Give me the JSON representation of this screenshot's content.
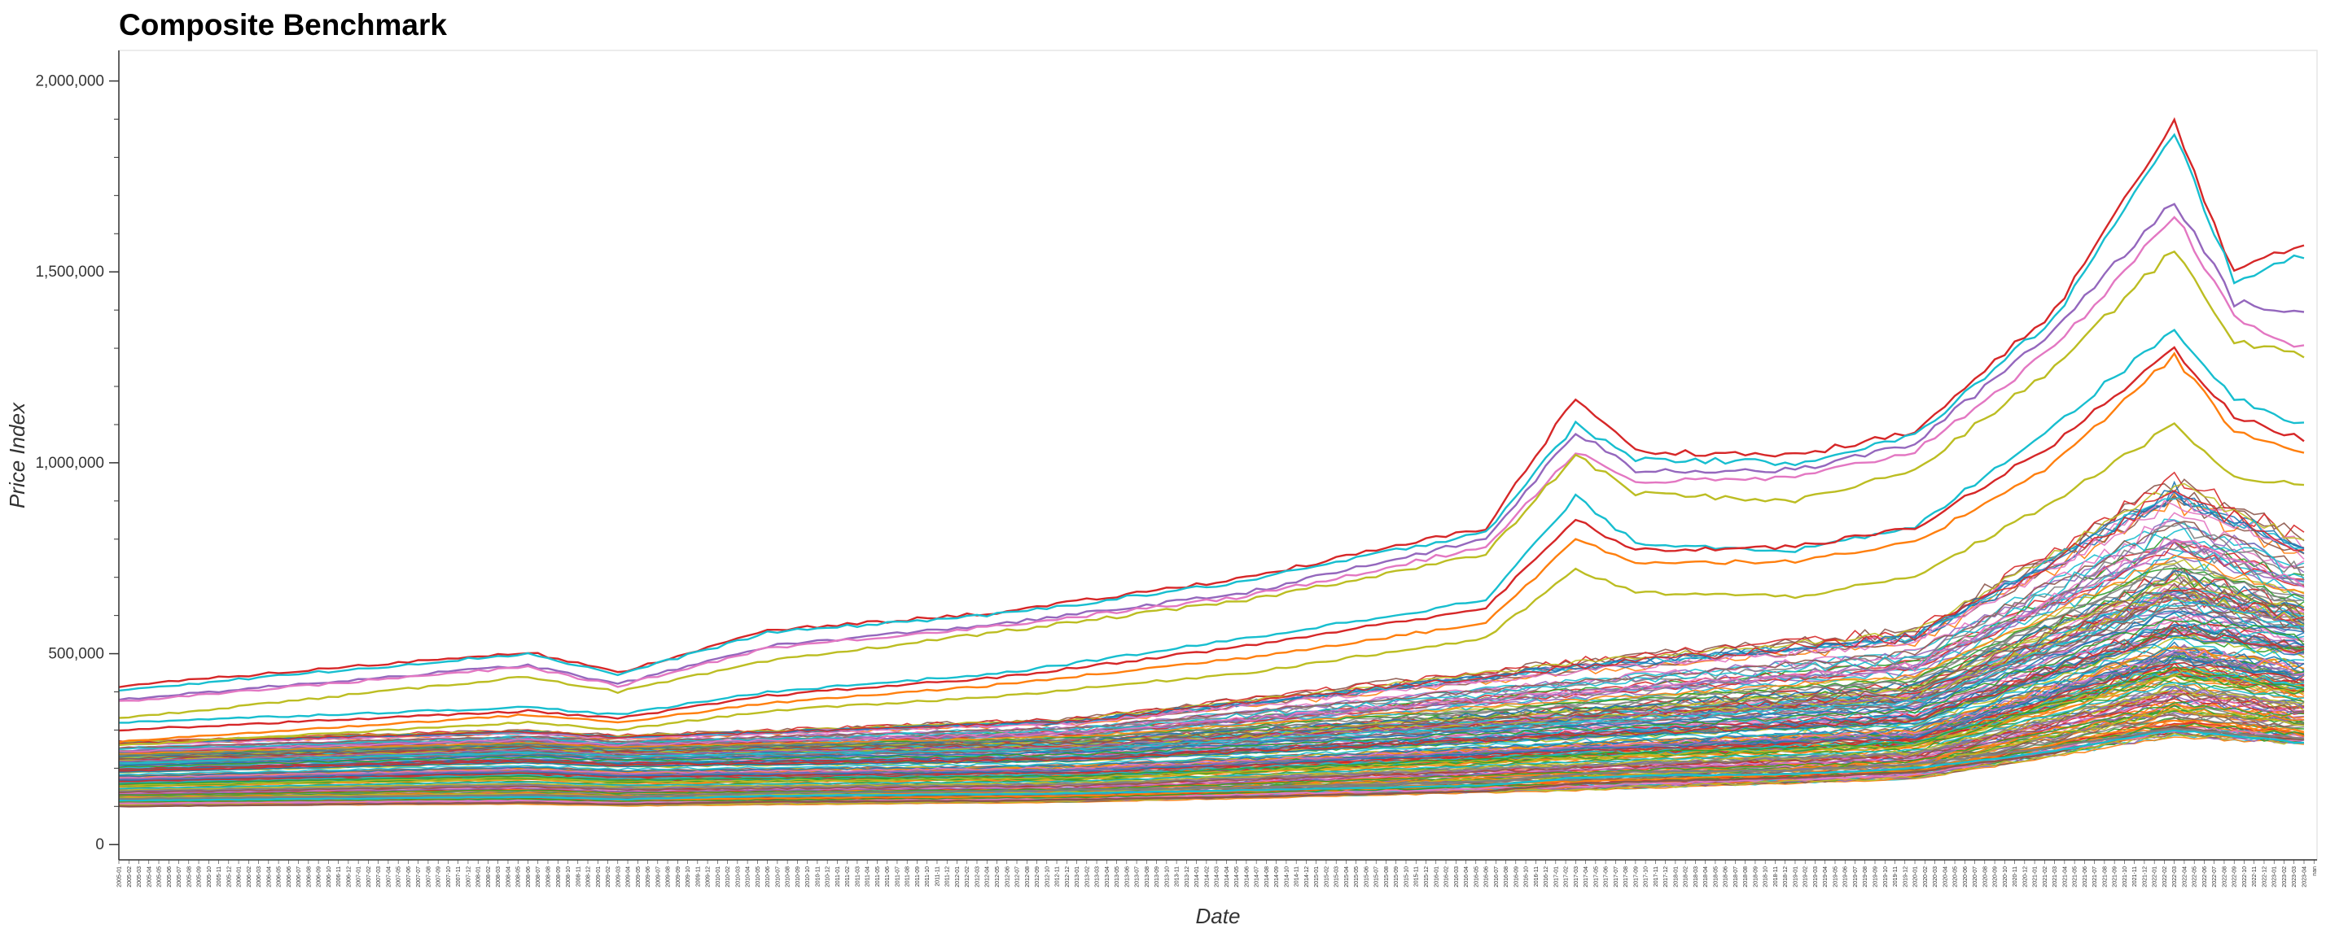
{
  "chart_data": {
    "type": "line",
    "title": "Composite Benchmark",
    "xlabel": "Date",
    "ylabel": "Price Index",
    "ylim": [
      -40000,
      2080000
    ],
    "yticks": [
      0,
      500000,
      1000000,
      1500000,
      2000000
    ],
    "ytick_labels": [
      "0",
      "500,000",
      "1,000,000",
      "1,500,000",
      "2,000,000"
    ],
    "x_start": "2005-01",
    "x_end": "2023-04",
    "x_trailing_label": "nan",
    "grid": false,
    "legend": "none",
    "series_count_approx": 200,
    "band_percentiles": [
      0,
      0.25,
      0.5,
      0.75,
      1
    ],
    "band_anchors": [
      {
        "x": "2005-01",
        "y": [
          100000,
          155000,
          190000,
          225000,
          270000
        ]
      },
      {
        "x": "2008-06",
        "y": [
          105000,
          175000,
          215000,
          255000,
          300000
        ]
      },
      {
        "x": "2009-03",
        "y": [
          100000,
          165000,
          205000,
          245000,
          285000
        ]
      },
      {
        "x": "2013-01",
        "y": [
          110000,
          175000,
          220000,
          265000,
          330000
        ]
      },
      {
        "x": "2017-03",
        "y": [
          140000,
          230000,
          280000,
          340000,
          480000
        ]
      },
      {
        "x": "2020-01",
        "y": [
          170000,
          260000,
          320000,
          400000,
          560000
        ]
      },
      {
        "x": "2022-03",
        "y": [
          280000,
          450000,
          550000,
          680000,
          950000
        ]
      },
      {
        "x": "2023-04",
        "y": [
          260000,
          400000,
          500000,
          600000,
          800000
        ]
      }
    ],
    "series_highlighted": [
      {
        "color": "#d62728",
        "points": [
          [
            "2005-01",
            415000
          ],
          [
            "2008-06",
            505000
          ],
          [
            "2009-03",
            450000
          ],
          [
            "2010-06",
            560000
          ],
          [
            "2012-06",
            610000
          ],
          [
            "2014-06",
            700000
          ],
          [
            "2016-06",
            830000
          ],
          [
            "2017-03",
            1170000
          ],
          [
            "2017-09",
            1030000
          ],
          [
            "2019-01",
            1020000
          ],
          [
            "2020-01",
            1080000
          ],
          [
            "2021-03",
            1400000
          ],
          [
            "2022-03",
            1890000
          ],
          [
            "2022-09",
            1500000
          ],
          [
            "2023-04",
            1570000
          ]
        ]
      },
      {
        "color": "#17becf",
        "points": [
          [
            "2005-01",
            405000
          ],
          [
            "2008-06",
            500000
          ],
          [
            "2009-03",
            445000
          ],
          [
            "2010-06",
            555000
          ],
          [
            "2012-06",
            605000
          ],
          [
            "2014-06",
            690000
          ],
          [
            "2016-06",
            820000
          ],
          [
            "2017-03",
            1100000
          ],
          [
            "2017-09",
            1010000
          ],
          [
            "2019-01",
            1000000
          ],
          [
            "2020-01",
            1070000
          ],
          [
            "2021-03",
            1380000
          ],
          [
            "2022-03",
            1860000
          ],
          [
            "2022-09",
            1480000
          ],
          [
            "2023-04",
            1540000
          ]
        ]
      },
      {
        "color": "#9467bd",
        "points": [
          [
            "2005-01",
            380000
          ],
          [
            "2008-06",
            470000
          ],
          [
            "2009-03",
            420000
          ],
          [
            "2010-06",
            520000
          ],
          [
            "2012-06",
            580000
          ],
          [
            "2014-06",
            660000
          ],
          [
            "2016-06",
            800000
          ],
          [
            "2017-03",
            1080000
          ],
          [
            "2017-09",
            980000
          ],
          [
            "2019-01",
            980000
          ],
          [
            "2020-01",
            1050000
          ],
          [
            "2021-03",
            1350000
          ],
          [
            "2022-03",
            1690000
          ],
          [
            "2022-09",
            1420000
          ],
          [
            "2023-04",
            1390000
          ]
        ]
      },
      {
        "color": "#e377c2",
        "points": [
          [
            "2005-01",
            375000
          ],
          [
            "2008-06",
            465000
          ],
          [
            "2009-03",
            415000
          ],
          [
            "2010-06",
            515000
          ],
          [
            "2012-06",
            575000
          ],
          [
            "2014-06",
            650000
          ],
          [
            "2016-06",
            780000
          ],
          [
            "2017-03",
            1030000
          ],
          [
            "2017-09",
            950000
          ],
          [
            "2019-01",
            960000
          ],
          [
            "2020-01",
            1030000
          ],
          [
            "2021-03",
            1300000
          ],
          [
            "2022-03",
            1650000
          ],
          [
            "2022-09",
            1380000
          ],
          [
            "2023-04",
            1300000
          ]
        ]
      },
      {
        "color": "#bcbd22",
        "points": [
          [
            "2005-01",
            330000
          ],
          [
            "2008-06",
            440000
          ],
          [
            "2009-03",
            400000
          ],
          [
            "2010-06",
            480000
          ],
          [
            "2012-06",
            560000
          ],
          [
            "2014-06",
            640000
          ],
          [
            "2016-06",
            760000
          ],
          [
            "2017-03",
            1020000
          ],
          [
            "2017-09",
            920000
          ],
          [
            "2019-01",
            900000
          ],
          [
            "2020-01",
            980000
          ],
          [
            "2021-03",
            1250000
          ],
          [
            "2022-03",
            1560000
          ],
          [
            "2022-09",
            1320000
          ],
          [
            "2023-04",
            1280000
          ]
        ]
      },
      {
        "color": "#17becf",
        "points": [
          [
            "2005-01",
            320000
          ],
          [
            "2008-06",
            360000
          ],
          [
            "2009-03",
            340000
          ],
          [
            "2010-06",
            400000
          ],
          [
            "2012-06",
            450000
          ],
          [
            "2014-06",
            540000
          ],
          [
            "2016-06",
            640000
          ],
          [
            "2017-03",
            910000
          ],
          [
            "2017-09",
            790000
          ],
          [
            "2019-01",
            770000
          ],
          [
            "2020-01",
            830000
          ],
          [
            "2021-03",
            1100000
          ],
          [
            "2022-03",
            1350000
          ],
          [
            "2022-09",
            1170000
          ],
          [
            "2023-04",
            1100000
          ]
        ]
      },
      {
        "color": "#d62728",
        "points": [
          [
            "2005-01",
            300000
          ],
          [
            "2008-06",
            350000
          ],
          [
            "2009-03",
            330000
          ],
          [
            "2010-06",
            390000
          ],
          [
            "2012-06",
            440000
          ],
          [
            "2014-06",
            520000
          ],
          [
            "2016-06",
            620000
          ],
          [
            "2017-03",
            850000
          ],
          [
            "2017-09",
            770000
          ],
          [
            "2019-01",
            780000
          ],
          [
            "2020-01",
            830000
          ],
          [
            "2021-03",
            1050000
          ],
          [
            "2022-03",
            1300000
          ],
          [
            "2022-09",
            1120000
          ],
          [
            "2023-04",
            1060000
          ]
        ]
      },
      {
        "color": "#ff7f0e",
        "points": [
          [
            "2005-01",
            270000
          ],
          [
            "2008-06",
            340000
          ],
          [
            "2009-03",
            320000
          ],
          [
            "2010-06",
            370000
          ],
          [
            "2012-06",
            420000
          ],
          [
            "2014-06",
            490000
          ],
          [
            "2016-06",
            580000
          ],
          [
            "2017-03",
            800000
          ],
          [
            "2017-09",
            740000
          ],
          [
            "2019-01",
            740000
          ],
          [
            "2020-01",
            790000
          ],
          [
            "2021-03",
            1000000
          ],
          [
            "2022-03",
            1280000
          ],
          [
            "2022-09",
            1080000
          ],
          [
            "2023-04",
            1030000
          ]
        ]
      },
      {
        "color": "#bcbd22",
        "points": [
          [
            "2005-01",
            260000
          ],
          [
            "2008-06",
            320000
          ],
          [
            "2009-03",
            300000
          ],
          [
            "2010-06",
            350000
          ],
          [
            "2012-06",
            390000
          ],
          [
            "2014-06",
            450000
          ],
          [
            "2016-06",
            540000
          ],
          [
            "2017-03",
            720000
          ],
          [
            "2017-09",
            660000
          ],
          [
            "2019-01",
            650000
          ],
          [
            "2020-01",
            700000
          ],
          [
            "2021-03",
            900000
          ],
          [
            "2022-03",
            1100000
          ],
          [
            "2022-09",
            960000
          ],
          [
            "2023-04",
            940000
          ]
        ]
      },
      {
        "color": "#8c564b",
        "points": [
          [
            "2005-01",
            100000
          ],
          [
            "2008-06",
            110000
          ],
          [
            "2009-03",
            105000
          ],
          [
            "2010-06",
            112000
          ],
          [
            "2012-06",
            115000
          ],
          [
            "2014-06",
            125000
          ],
          [
            "2016-06",
            140000
          ],
          [
            "2017-03",
            160000
          ],
          [
            "2017-09",
            165000
          ],
          [
            "2019-01",
            175000
          ],
          [
            "2020-01",
            190000
          ],
          [
            "2021-03",
            240000
          ],
          [
            "2022-03",
            310000
          ],
          [
            "2022-09",
            290000
          ],
          [
            "2023-04",
            275000
          ]
        ]
      },
      {
        "color": "#17becf",
        "points": [
          [
            "2005-01",
            115000
          ],
          [
            "2008-06",
            125000
          ],
          [
            "2009-03",
            118000
          ],
          [
            "2010-06",
            128000
          ],
          [
            "2012-06",
            132000
          ],
          [
            "2014-06",
            142000
          ],
          [
            "2016-06",
            155000
          ],
          [
            "2017-03",
            175000
          ],
          [
            "2017-09",
            180000
          ],
          [
            "2019-01",
            185000
          ],
          [
            "2020-01",
            200000
          ],
          [
            "2021-03",
            245000
          ],
          [
            "2022-03",
            300000
          ],
          [
            "2022-09",
            285000
          ],
          [
            "2023-04",
            265000
          ]
        ]
      },
      {
        "color": "#7f7f7f",
        "points": [
          [
            "2005-01",
            120000
          ],
          [
            "2008-06",
            130000
          ],
          [
            "2009-03",
            125000
          ],
          [
            "2010-06",
            135000
          ],
          [
            "2012-06",
            140000
          ],
          [
            "2014-06",
            150000
          ],
          [
            "2016-06",
            165000
          ],
          [
            "2017-03",
            185000
          ],
          [
            "2017-09",
            190000
          ],
          [
            "2019-01",
            195000
          ],
          [
            "2020-01",
            210000
          ],
          [
            "2021-03",
            255000
          ],
          [
            "2022-03",
            305000
          ],
          [
            "2022-09",
            290000
          ],
          [
            "2023-04",
            280000
          ]
        ]
      }
    ]
  }
}
